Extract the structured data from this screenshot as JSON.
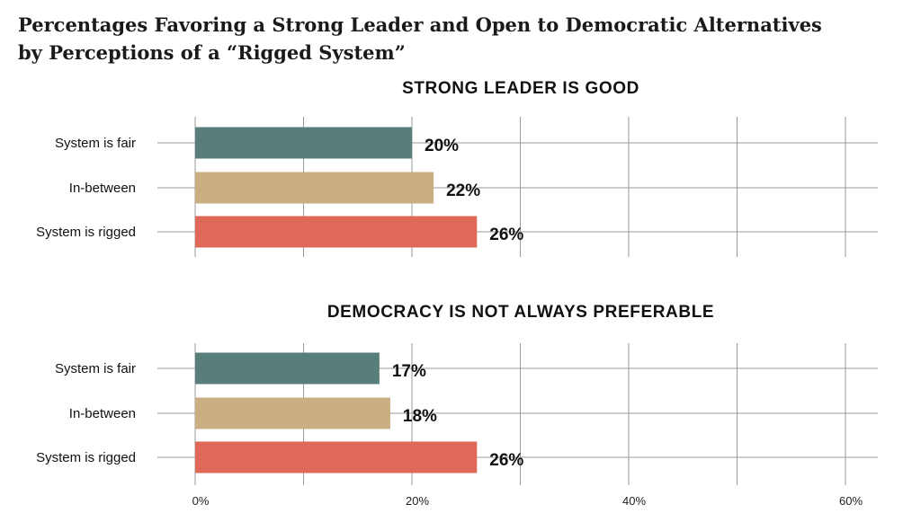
{
  "title": {
    "line1": "Percentages Favoring a Strong Leader and Open to Democratic Alternatives",
    "line2": "by Perceptions of a “Rigged System”"
  },
  "colors": {
    "fair": "#587e7a",
    "between": "#c8ae80",
    "rigged": "#e06858",
    "grid": "#9a9a9a"
  },
  "chart_data": [
    {
      "type": "bar",
      "orientation": "horizontal",
      "subtitle": "STRONG LEADER IS GOOD",
      "categories": [
        "System is fair",
        "In-between",
        "System is rigged"
      ],
      "values": [
        20,
        22,
        26
      ],
      "value_labels": [
        "20%",
        "22%",
        "26%"
      ],
      "xlim": [
        0,
        63
      ],
      "grid": true
    },
    {
      "type": "bar",
      "orientation": "horizontal",
      "subtitle": "DEMOCRACY IS NOT ALWAYS PREFERABLE",
      "categories": [
        "System is fair",
        "In-between",
        "System is rigged"
      ],
      "values": [
        17,
        18,
        26
      ],
      "value_labels": [
        "17%",
        "18%",
        "26%"
      ],
      "xlim": [
        0,
        63
      ],
      "grid": true,
      "x_ticks": [
        0,
        20,
        40,
        60
      ],
      "x_tick_labels": [
        "0%",
        "20%",
        "40%",
        "60%"
      ]
    }
  ]
}
